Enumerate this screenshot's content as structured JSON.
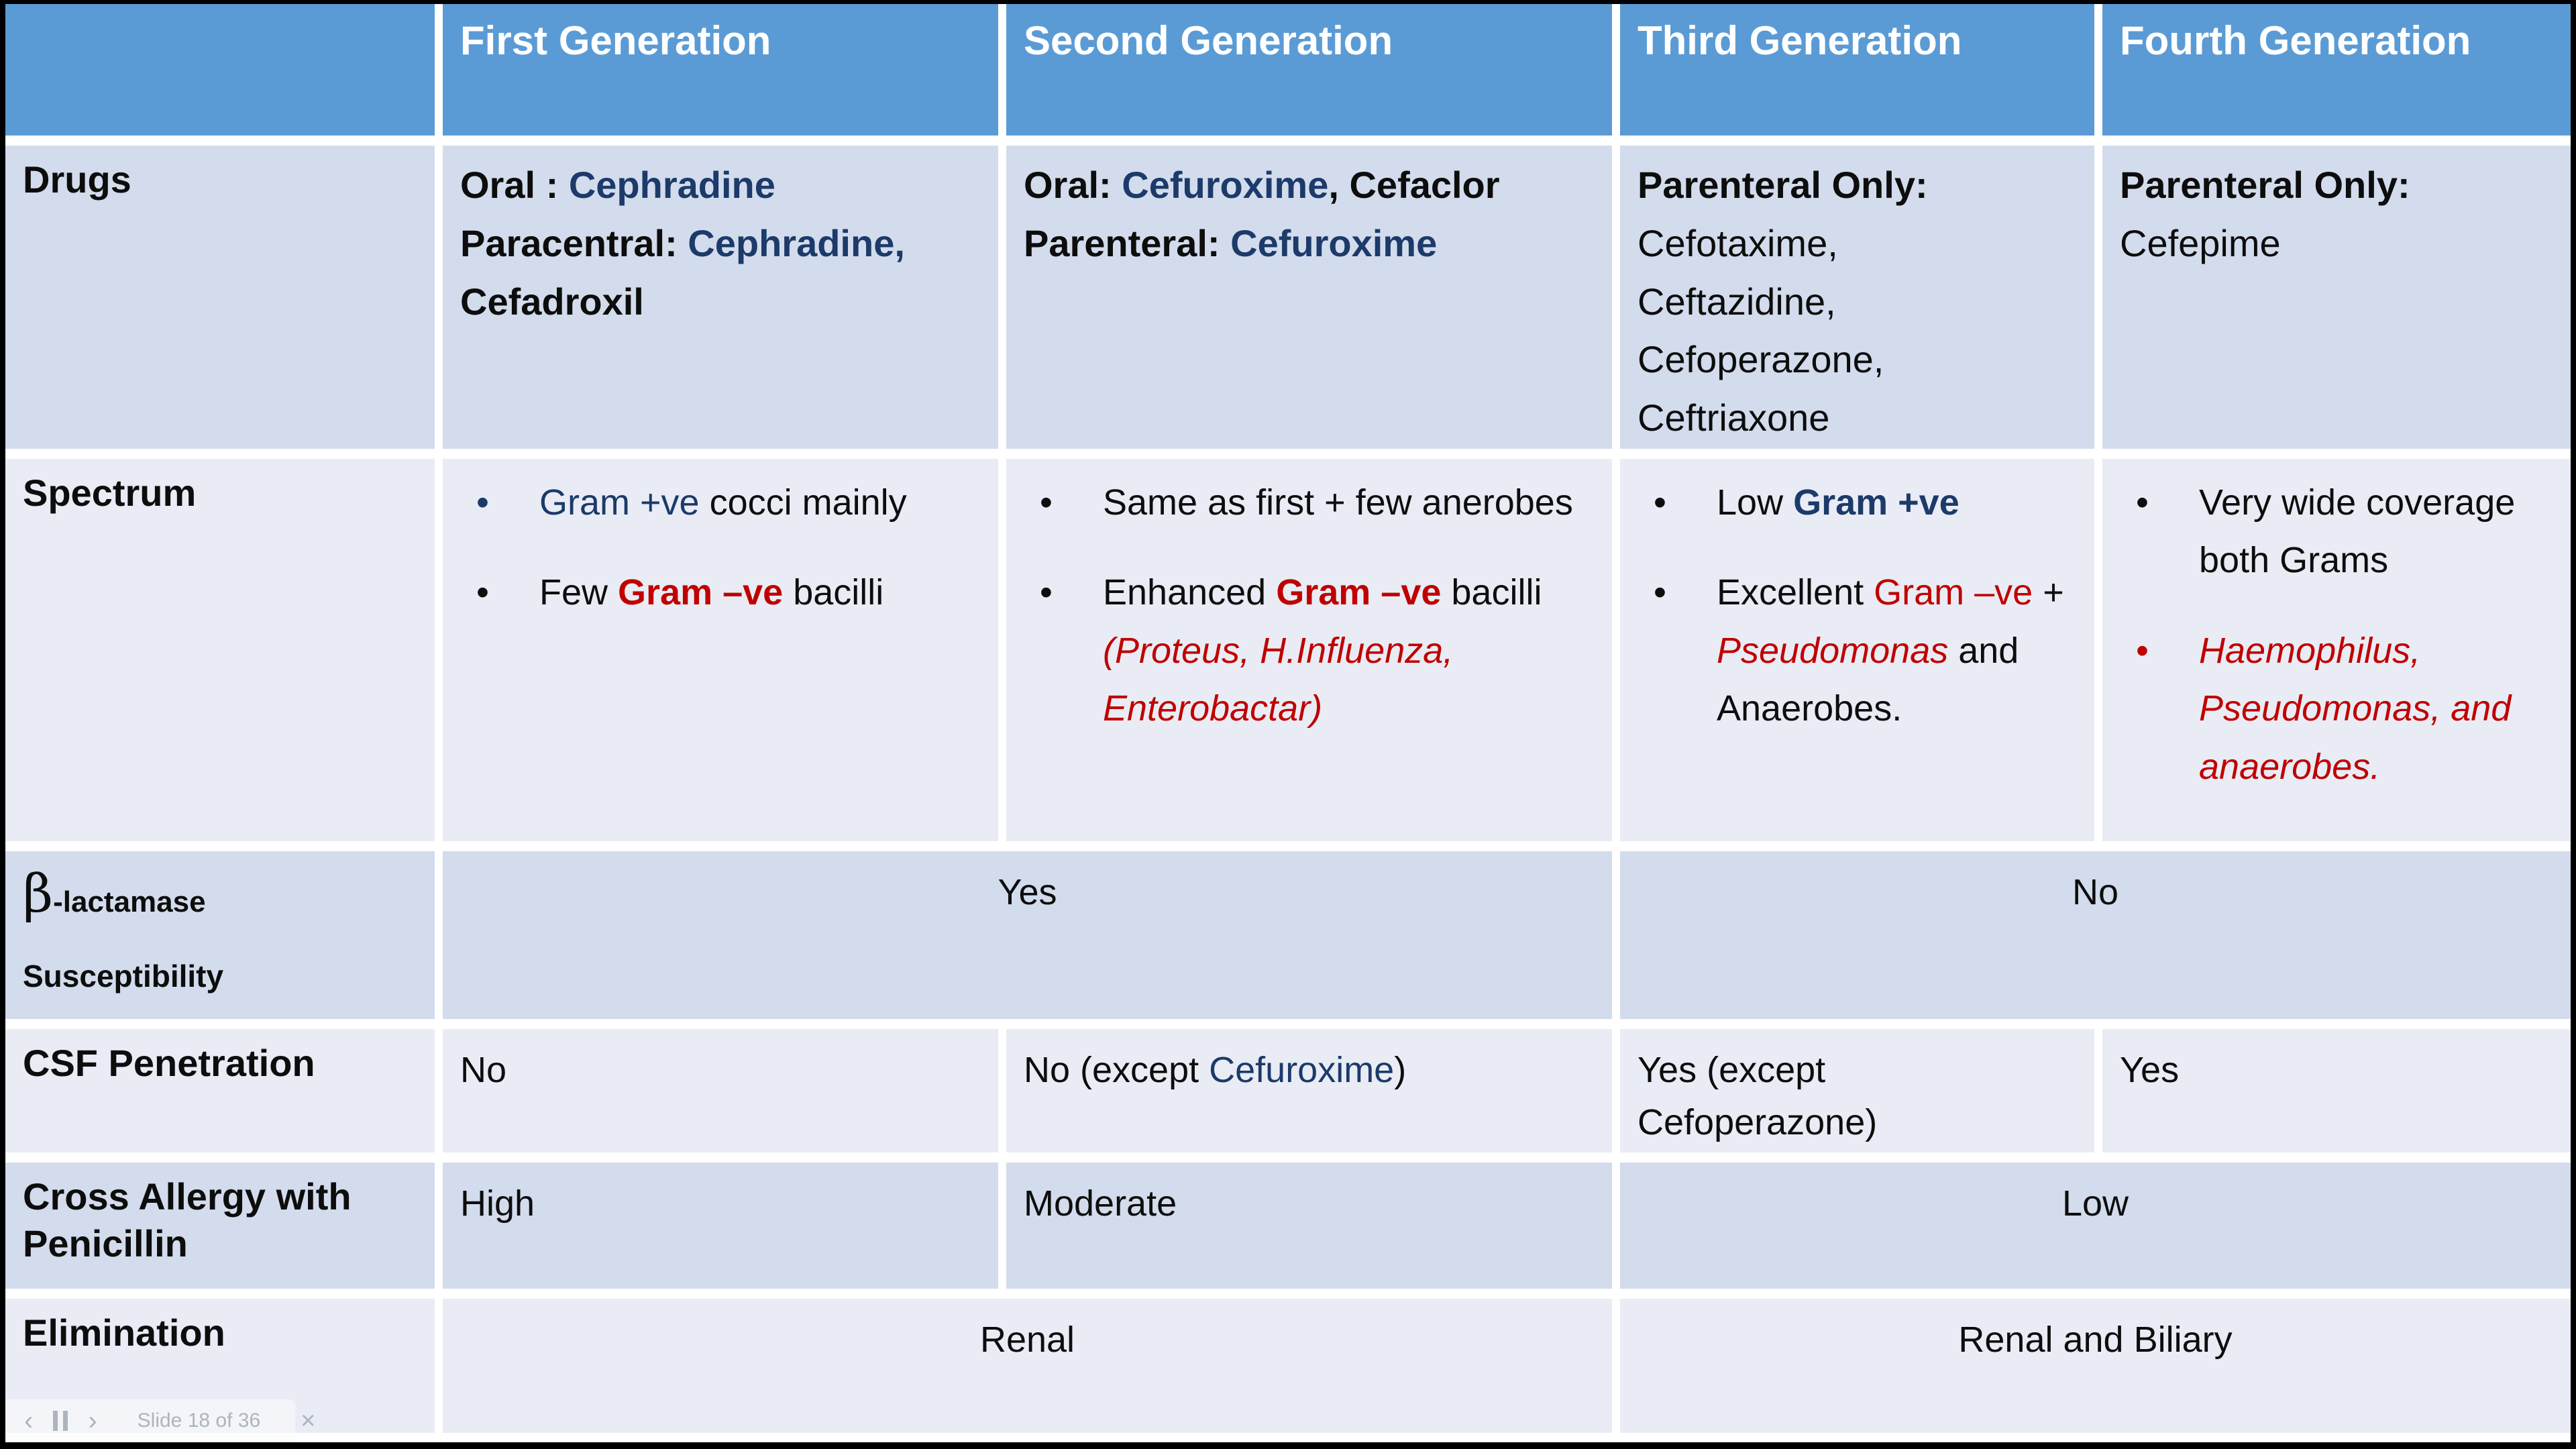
{
  "colors": {
    "header_blue": "#5b9bd5",
    "band_dark": "#d3dcec",
    "band_light": "#e9ecf4",
    "navy": "#1c3a6a",
    "red": "#c00000",
    "toolbar_gray": "#aeb4bd"
  },
  "bullet_glyph": "•",
  "header": {
    "generations": [
      "First Generation",
      "Second Generation",
      "Third Generation",
      "Fourth Generation"
    ]
  },
  "row_labels": {
    "drugs": "Drugs",
    "spectrum": "Spectrum",
    "beta_symbol": "β",
    "beta_rest": "-lactamase",
    "beta_line2": "Susceptibility",
    "csf": "CSF Penetration",
    "cross": "Cross Allergy with Penicillin",
    "elimination": "Elimination"
  },
  "drugs": {
    "gen1": [
      {
        "t": "Oral : ",
        "s": "b"
      },
      {
        "t": "Cephradine",
        "s": "b navy"
      },
      {
        "t": "\nParacentral: ",
        "s": "b"
      },
      {
        "t": "Cephradine,",
        "s": "b navy"
      },
      {
        "t": "\nCefadroxil",
        "s": "b"
      }
    ],
    "gen2": [
      {
        "t": "Oral: ",
        "s": "b"
      },
      {
        "t": "Cefuroxime",
        "s": "b navy"
      },
      {
        "t": ", Cefaclor",
        "s": "b"
      },
      {
        "t": "\nParenteral: ",
        "s": "b"
      },
      {
        "t": "Cefuroxime",
        "s": "b navy"
      }
    ],
    "gen3": [
      {
        "t": "Parenteral Only:",
        "s": "b"
      },
      {
        "t": "\nCefotaxime,\nCeftazidine,\nCefoperazone,\nCeftriaxone",
        "s": ""
      }
    ],
    "gen4": [
      {
        "t": "Parenteral Only:",
        "s": "b"
      },
      {
        "t": "\nCefepime",
        "s": ""
      }
    ]
  },
  "spectrum": {
    "gen1": [
      {
        "b": "navy",
        "segs": [
          {
            "t": "Gram +ve ",
            "s": "navy"
          },
          {
            "t": "cocci mainly",
            "s": ""
          }
        ]
      },
      {
        "b": "",
        "segs": [
          {
            "t": "Few ",
            "s": ""
          },
          {
            "t": "Gram –ve ",
            "s": "b red"
          },
          {
            "t": "bacilli",
            "s": ""
          }
        ]
      }
    ],
    "gen2": [
      {
        "b": "",
        "segs": [
          {
            "t": "Same as first + few anerobes",
            "s": ""
          }
        ]
      },
      {
        "b": "",
        "segs": [
          {
            "t": "Enhanced ",
            "s": ""
          },
          {
            "t": "Gram –ve ",
            "s": "b red"
          },
          {
            "t": "bacilli ",
            "s": ""
          },
          {
            "t": "(Proteus, H.Influenza, Enterobactar)",
            "s": "i red"
          }
        ]
      }
    ],
    "gen3": [
      {
        "b": "",
        "segs": [
          {
            "t": "Low ",
            "s": ""
          },
          {
            "t": "Gram +ve",
            "s": "b navy"
          }
        ]
      },
      {
        "b": "",
        "segs": [
          {
            "t": "Excellent ",
            "s": ""
          },
          {
            "t": "Gram –ve",
            "s": "red"
          },
          {
            "t": " + ",
            "s": ""
          },
          {
            "t": "Pseudomonas",
            "s": "i red"
          },
          {
            "t": " and Anaerobes.",
            "s": ""
          }
        ]
      }
    ],
    "gen4": [
      {
        "b": "",
        "segs": [
          {
            "t": "Very wide coverage both Grams",
            "s": ""
          }
        ]
      },
      {
        "b": "red",
        "segs": [
          {
            "t": "Haemophilus, Pseudomonas, and anaerobes.",
            "s": "i red"
          }
        ]
      }
    ]
  },
  "beta": {
    "first_second": "Yes",
    "third_fourth": "No"
  },
  "csf": {
    "gen1": "No",
    "gen2": [
      {
        "t": "No (except ",
        "s": ""
      },
      {
        "t": "Cefuroxime",
        "s": "navy"
      },
      {
        "t": ")",
        "s": ""
      }
    ],
    "gen3": "Yes (except Cefoperazone)",
    "gen4": "Yes"
  },
  "cross_allergy": {
    "gen1": "High",
    "gen2": "Moderate",
    "third_fourth": "Low"
  },
  "elimination": {
    "first_second": "Renal",
    "third_fourth": "Renal and Biliary"
  },
  "toolbar": {
    "prev_icon": "‹",
    "next_icon": "›",
    "close_icon": "×",
    "slide_counter": "Slide 18 of 36"
  }
}
